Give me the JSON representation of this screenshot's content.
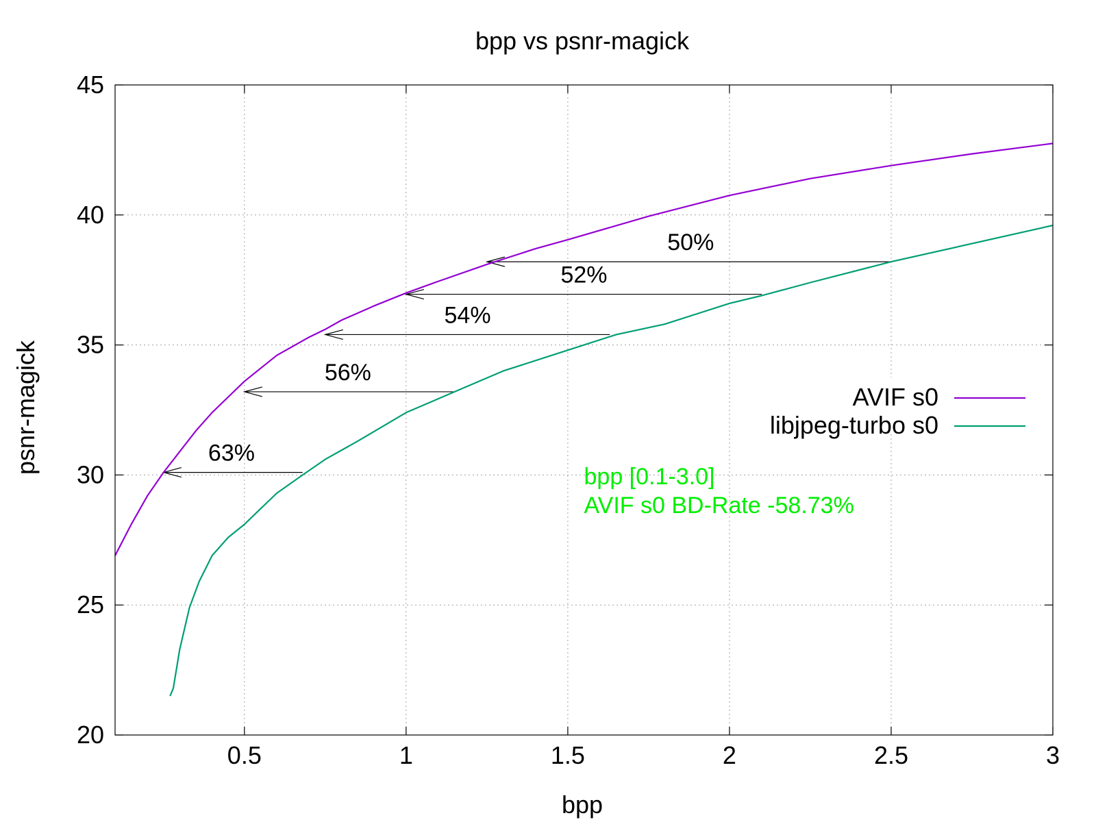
{
  "chart_data": {
    "type": "line",
    "title": "bpp vs psnr-magick",
    "xlabel": "bpp",
    "ylabel": "psnr-magick",
    "xlim": [
      0.1,
      3.0
    ],
    "ylim": [
      20,
      45
    ],
    "xticks": [
      0.5,
      1,
      1.5,
      2,
      2.5,
      3
    ],
    "xtick_labels": [
      "0.5",
      "1",
      "1.5",
      "2",
      "2.5",
      "3"
    ],
    "yticks": [
      20,
      25,
      30,
      35,
      40,
      45
    ],
    "ytick_labels": [
      "20",
      "25",
      "30",
      "35",
      "40",
      "45"
    ],
    "grid": true,
    "legend_position": "right",
    "series": [
      {
        "name": "AVIF s0",
        "color": "#9400d3",
        "x": [
          0.1,
          0.15,
          0.2,
          0.25,
          0.3,
          0.35,
          0.4,
          0.45,
          0.5,
          0.6,
          0.7,
          0.75,
          0.8,
          0.9,
          1.0,
          1.1,
          1.25,
          1.4,
          1.5,
          1.75,
          2.0,
          2.25,
          2.5,
          2.75,
          3.0
        ],
        "y": [
          26.9,
          28.1,
          29.2,
          30.1,
          30.9,
          31.7,
          32.4,
          33.0,
          33.6,
          34.6,
          35.3,
          35.6,
          35.95,
          36.5,
          37.0,
          37.45,
          38.1,
          38.7,
          39.05,
          39.95,
          40.75,
          41.4,
          41.9,
          42.35,
          42.75
        ]
      },
      {
        "name": "libjpeg-turbo s0",
        "color": "#009e73",
        "x": [
          0.27,
          0.28,
          0.3,
          0.33,
          0.36,
          0.4,
          0.45,
          0.5,
          0.55,
          0.6,
          0.68,
          0.75,
          0.85,
          1.0,
          1.15,
          1.3,
          1.5,
          1.65,
          1.8,
          2.0,
          2.1,
          2.25,
          2.5,
          2.75,
          3.0
        ],
        "y": [
          21.5,
          21.8,
          23.3,
          24.9,
          25.9,
          26.9,
          27.6,
          28.1,
          28.7,
          29.3,
          30.0,
          30.6,
          31.3,
          32.4,
          33.2,
          34.0,
          34.8,
          35.4,
          35.8,
          36.6,
          36.9,
          37.4,
          38.2,
          38.9,
          39.6
        ]
      }
    ],
    "annotations": [
      {
        "label": "63%",
        "y": 30.1,
        "x_from": 0.68,
        "x_to": 0.25,
        "label_x": 0.46,
        "label_y": 30.55
      },
      {
        "label": "56%",
        "y": 33.2,
        "x_from": 1.15,
        "x_to": 0.5,
        "label_x": 0.82,
        "label_y": 33.65
      },
      {
        "label": "54%",
        "y": 35.4,
        "x_from": 1.63,
        "x_to": 0.75,
        "label_x": 1.19,
        "label_y": 35.85
      },
      {
        "label": "52%",
        "y": 36.95,
        "x_from": 2.1,
        "x_to": 1.0,
        "label_x": 1.55,
        "label_y": 37.4
      },
      {
        "label": "50%",
        "y": 38.2,
        "x_from": 2.5,
        "x_to": 1.25,
        "label_x": 1.88,
        "label_y": 38.65
      }
    ],
    "notes": {
      "color": "#00ee00",
      "line1": "bpp [0.1-3.0]",
      "line2": "AVIF s0 BD-Rate -58.73%",
      "x": 1.55
    }
  }
}
